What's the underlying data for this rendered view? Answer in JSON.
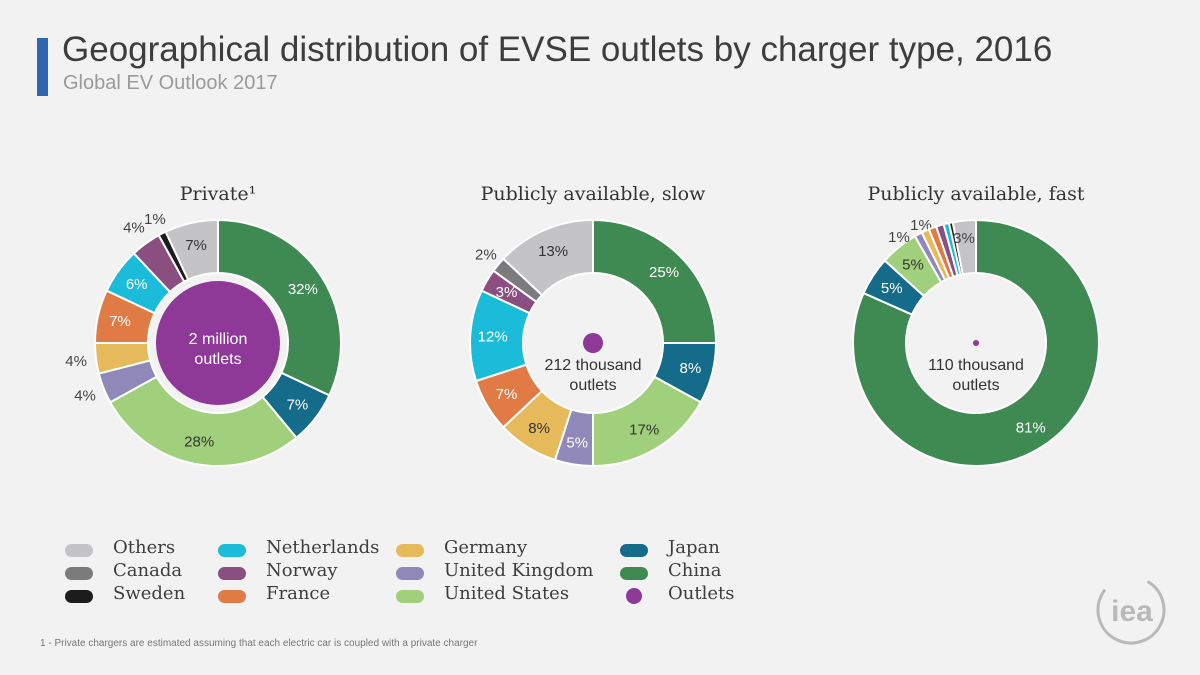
{
  "header": {
    "title": "Geographical distribution of EVSE outlets by charger type, 2016",
    "subtitle": "Global EV Outlook 2017"
  },
  "footnote": "1  - Private chargers are estimated assuming that each electric car is coupled with a private charger",
  "logo_text": "iea",
  "chart_data": [
    {
      "type": "pie",
      "title": "Private¹",
      "center_label": [
        "2 million",
        "outlets"
      ],
      "outlets_million": 2,
      "slices": [
        {
          "name": "China",
          "value": 32,
          "label": "32%"
        },
        {
          "name": "Japan",
          "value": 7,
          "label": "7%"
        },
        {
          "name": "United States",
          "value": 28,
          "label": "28%"
        },
        {
          "name": "United Kingdom",
          "value": 4,
          "label": "4%"
        },
        {
          "name": "Germany",
          "value": 4,
          "label": "4%"
        },
        {
          "name": "France",
          "value": 7,
          "label": "7%"
        },
        {
          "name": "Netherlands",
          "value": 6,
          "label": "6%"
        },
        {
          "name": "Norway",
          "value": 4,
          "label": "4%"
        },
        {
          "name": "Sweden",
          "value": 1,
          "label": "1%"
        },
        {
          "name": "Others",
          "value": 7,
          "label": "7%"
        }
      ]
    },
    {
      "type": "pie",
      "title": "Publicly available, slow",
      "center_label": [
        "212 thousand",
        "outlets"
      ],
      "outlets_thousand": 212,
      "slices": [
        {
          "name": "China",
          "value": 25,
          "label": "25%"
        },
        {
          "name": "Japan",
          "value": 8,
          "label": "8%"
        },
        {
          "name": "United States",
          "value": 17,
          "label": "17%"
        },
        {
          "name": "United Kingdom",
          "value": 5,
          "label": "5%"
        },
        {
          "name": "Germany",
          "value": 8,
          "label": "8%"
        },
        {
          "name": "France",
          "value": 7,
          "label": "7%"
        },
        {
          "name": "Netherlands",
          "value": 12,
          "label": "12%"
        },
        {
          "name": "Norway",
          "value": 3,
          "label": "3%"
        },
        {
          "name": "Canada",
          "value": 2,
          "label": "2%"
        },
        {
          "name": "Others",
          "value": 13,
          "label": "13%"
        }
      ]
    },
    {
      "type": "pie",
      "title": "Publicly available, fast",
      "center_label": [
        "110 thousand",
        "outlets"
      ],
      "outlets_thousand": 110,
      "slices": [
        {
          "name": "China",
          "value": 81,
          "label": "81%"
        },
        {
          "name": "Japan",
          "value": 5,
          "label": "5%"
        },
        {
          "name": "United States",
          "value": 5,
          "label": "5%"
        },
        {
          "name": "United Kingdom",
          "value": 1,
          "label": "1%"
        },
        {
          "name": "Germany",
          "value": 1,
          "label": "1%"
        },
        {
          "name": "France",
          "value": 1,
          "label": "1%"
        },
        {
          "name": "Norway",
          "value": 1,
          "label": "1%"
        },
        {
          "name": "Netherlands",
          "value": 0.7,
          "label": ""
        },
        {
          "name": "Sweden",
          "value": 0.5,
          "label": ""
        },
        {
          "name": "Others",
          "value": 3,
          "label": "3%"
        }
      ]
    }
  ],
  "legend": [
    {
      "name": "Others",
      "color": "#c4c4c6",
      "shape": "swatch"
    },
    {
      "name": "Canada",
      "color": "#7b7b7d",
      "shape": "swatch"
    },
    {
      "name": "Sweden",
      "color": "#1c1c1c",
      "shape": "swatch"
    },
    {
      "name": "Netherlands",
      "color": "#1bbcd9",
      "shape": "swatch"
    },
    {
      "name": "Norway",
      "color": "#8a4f80",
      "shape": "swatch"
    },
    {
      "name": "France",
      "color": "#e07b45",
      "shape": "swatch"
    },
    {
      "name": "Germany",
      "color": "#e6b95a",
      "shape": "swatch"
    },
    {
      "name": "United Kingdom",
      "color": "#8f88b8",
      "shape": "swatch"
    },
    {
      "name": "United States",
      "color": "#a1d07c",
      "shape": "swatch"
    },
    {
      "name": "Japan",
      "color": "#156b8a",
      "shape": "swatch"
    },
    {
      "name": "China",
      "color": "#3f8a53",
      "shape": "swatch"
    },
    {
      "name": "Outlets",
      "color": "#8e3898",
      "shape": "dot"
    }
  ]
}
